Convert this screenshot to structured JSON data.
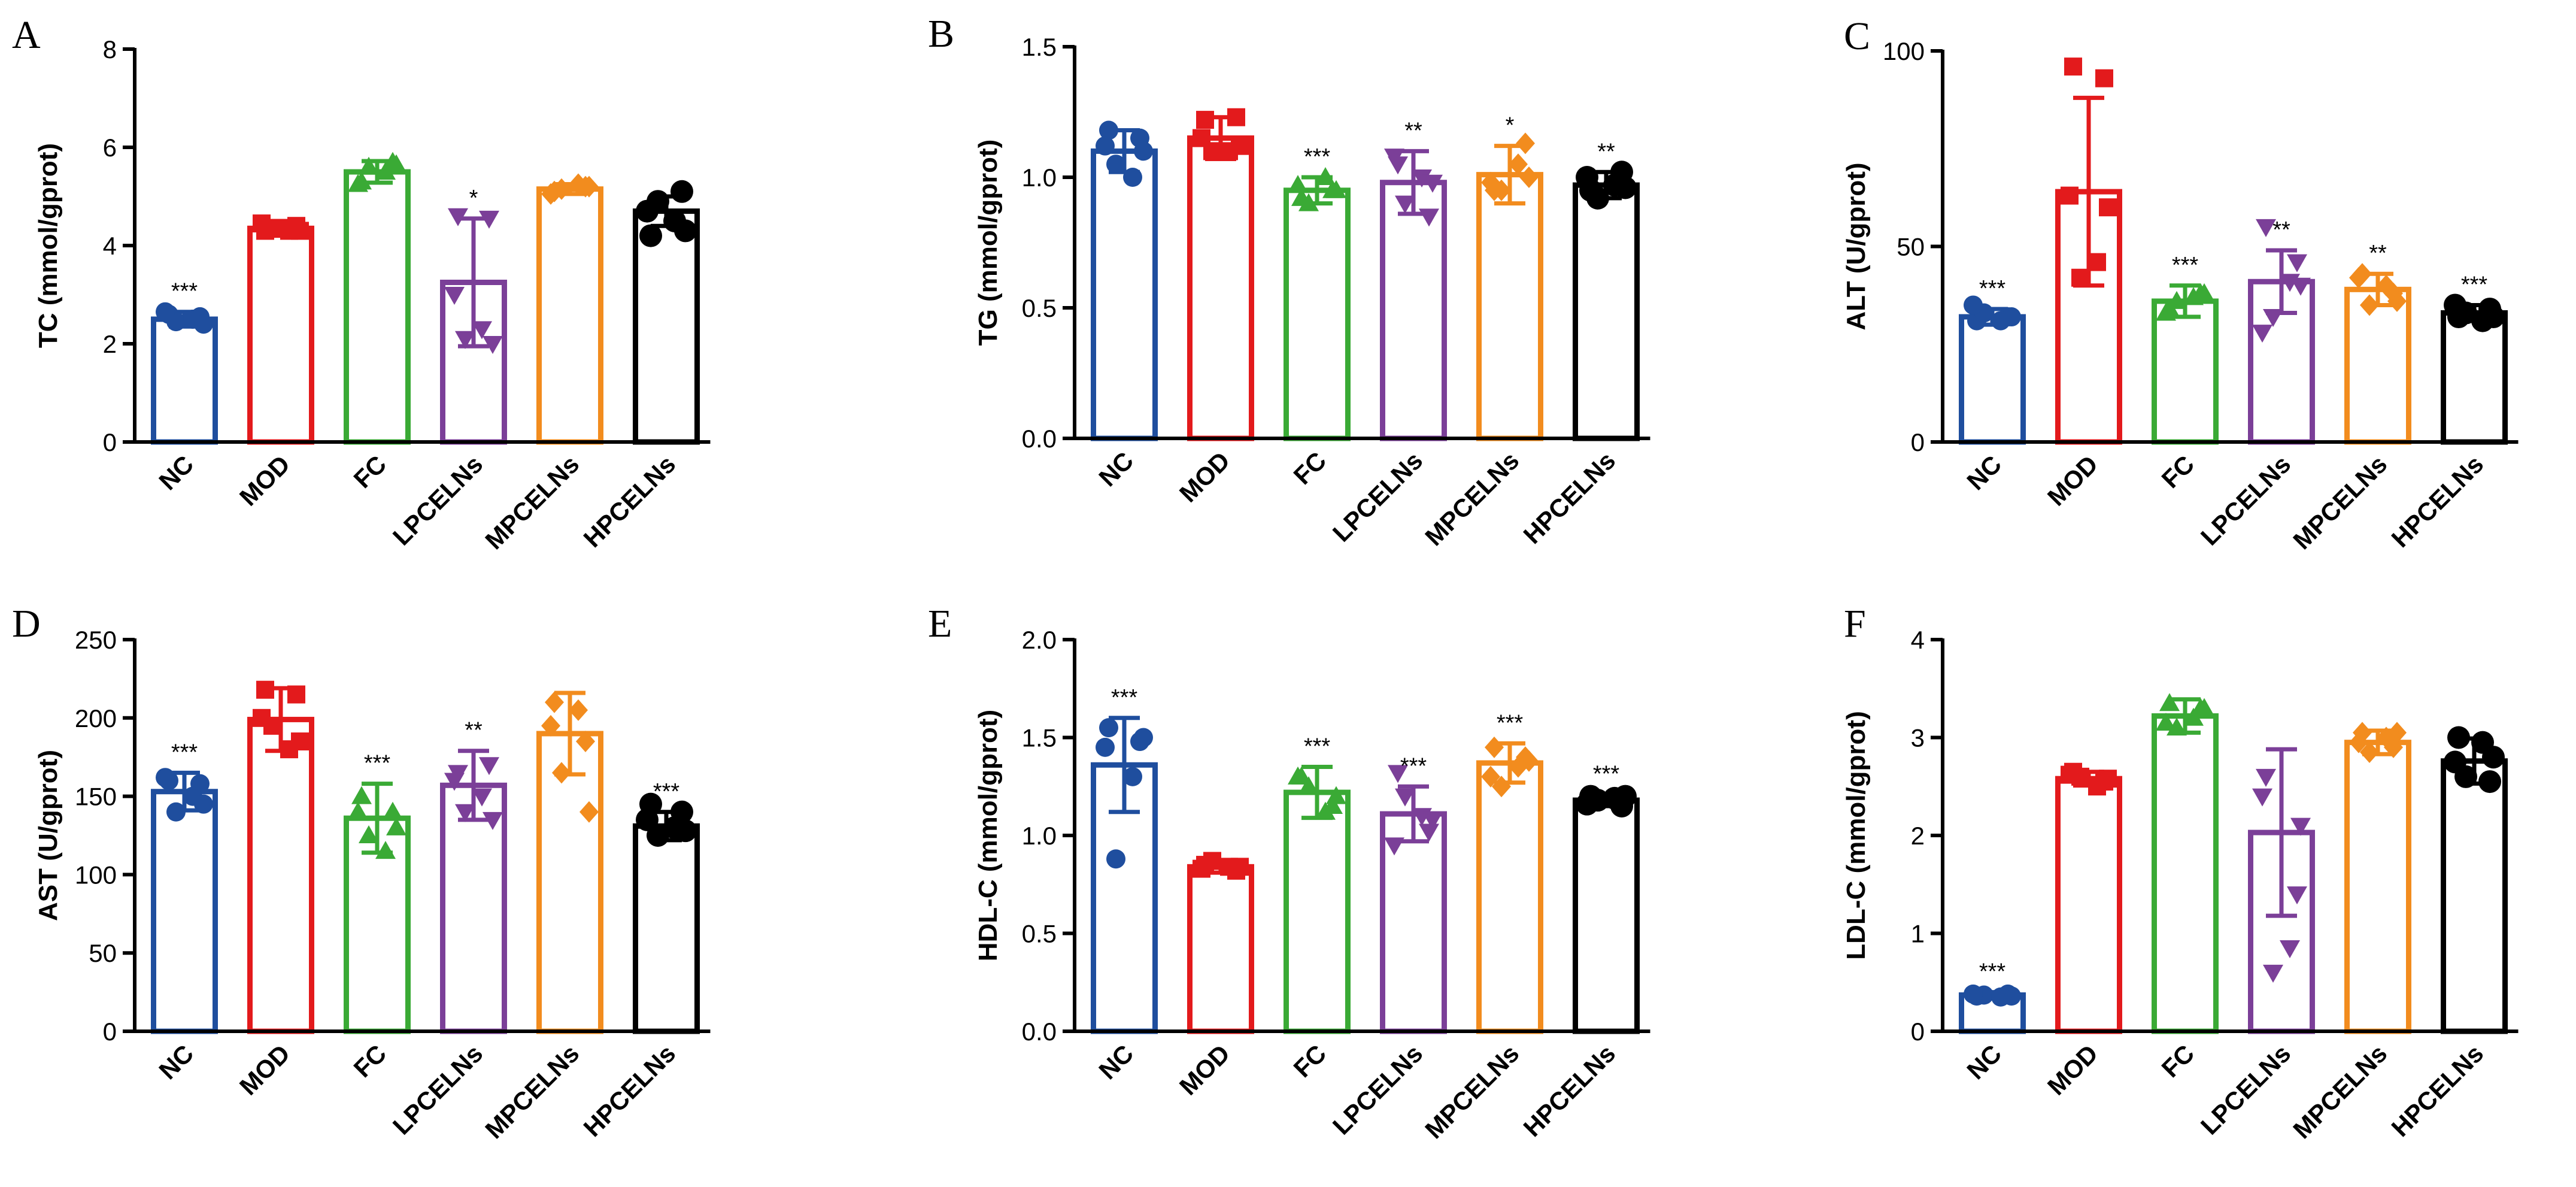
{
  "figure": {
    "groups": [
      "NC",
      "MOD",
      "FC",
      "LPCELNs",
      "MPCELNs",
      "HPCELNs"
    ],
    "colors": [
      "#1f4e9e",
      "#e31a1c",
      "#3aaa35",
      "#7b3f98",
      "#f28c1e",
      "#000000"
    ]
  },
  "chart_data": [
    {
      "panel": "A",
      "type": "bar",
      "ylabel": "TC (mmol/gprot)",
      "ylim": [
        0,
        8
      ],
      "yticks": [
        "0",
        "2",
        "4",
        "6",
        "8"
      ],
      "yticks_values": [
        0,
        2,
        4,
        6,
        8
      ],
      "categories": [
        "NC",
        "MOD",
        "FC",
        "LPCELNs",
        "MPCELNs",
        "HPCELNs"
      ],
      "values": [
        2.5,
        4.35,
        5.5,
        3.25,
        5.15,
        4.7
      ],
      "sd": [
        0.15,
        0.15,
        0.22,
        1.3,
        0.1,
        0.3
      ],
      "points": [
        [
          2.6,
          2.55,
          2.45,
          2.5,
          2.65,
          2.4
        ],
        [
          4.3,
          4.4,
          4.35,
          4.3,
          4.45,
          4.3
        ],
        [
          5.3,
          5.7,
          5.6,
          5.5,
          5.25,
          5.65
        ],
        [
          4.6,
          4.55,
          2.1,
          2.3,
          3.0,
          2.0
        ],
        [
          5.1,
          5.2,
          5.15,
          5.25,
          5.05,
          5.2
        ],
        [
          4.2,
          5.1,
          4.9,
          4.5,
          4.7,
          4.3
        ]
      ],
      "significance": [
        "***",
        "",
        "",
        "*",
        "",
        ""
      ]
    },
    {
      "panel": "B",
      "type": "bar",
      "ylabel": "TG (mmol/gprot)",
      "ylim": [
        0,
        1.5
      ],
      "yticks": [
        "0.0",
        "0.5",
        "1.0",
        "1.5"
      ],
      "yticks_values": [
        0,
        0.5,
        1.0,
        1.5
      ],
      "categories": [
        "NC",
        "MOD",
        "FC",
        "LPCELNs",
        "MPCELNs",
        "HPCELNs"
      ],
      "values": [
        1.1,
        1.15,
        0.95,
        0.98,
        1.01,
        0.97
      ],
      "sd": [
        0.08,
        0.08,
        0.05,
        0.12,
        0.11,
        0.05
      ],
      "points": [
        [
          1.18,
          1.15,
          1.05,
          1.0,
          1.12,
          1.1
        ],
        [
          1.22,
          1.23,
          1.1,
          1.1,
          1.15,
          1.12
        ],
        [
          0.92,
          0.95,
          0.9,
          1.0,
          0.97,
          0.95
        ],
        [
          1.05,
          0.85,
          0.9,
          1.0,
          1.08,
          0.98
        ],
        [
          0.95,
          1.13,
          0.95,
          1.05,
          0.98,
          1.0
        ],
        [
          0.95,
          1.02,
          0.92,
          0.97,
          1.0,
          0.96
        ]
      ],
      "significance": [
        "",
        "",
        "***",
        "**",
        "*",
        "**"
      ]
    },
    {
      "panel": "C",
      "type": "bar",
      "ylabel": "ALT (U/gprot)",
      "ylim": [
        0,
        100
      ],
      "yticks": [
        "0",
        "50",
        "100"
      ],
      "yticks_values": [
        0,
        50,
        100
      ],
      "categories": [
        "NC",
        "MOD",
        "FC",
        "LPCELNs",
        "MPCELNs",
        "HPCELNs"
      ],
      "values": [
        32,
        64,
        36,
        41,
        39,
        33
      ],
      "sd": [
        2,
        24,
        4,
        8,
        4,
        2
      ],
      "points": [
        [
          31,
          32,
          33,
          31,
          35,
          32
        ],
        [
          96,
          93,
          42,
          46,
          63,
          60
        ],
        [
          34,
          38,
          36,
          37,
          33,
          38
        ],
        [
          55,
          46,
          32,
          41,
          28,
          40
        ],
        [
          43,
          38,
          35,
          40,
          42,
          36
        ],
        [
          32,
          34,
          33,
          31,
          35,
          32
        ]
      ],
      "significance": [
        "***",
        "",
        "***",
        "**",
        "**",
        "***"
      ]
    },
    {
      "panel": "D",
      "type": "bar",
      "ylabel": "AST (U/gprot)",
      "ylim": [
        0,
        250
      ],
      "yticks": [
        "0",
        "50",
        "100",
        "150",
        "200",
        "250"
      ],
      "yticks_values": [
        0,
        50,
        100,
        150,
        200,
        250
      ],
      "categories": [
        "NC",
        "MOD",
        "FC",
        "LPCELNs",
        "MPCELNs",
        "HPCELNs"
      ],
      "values": [
        153,
        199,
        136,
        157,
        190,
        131
      ],
      "sd": [
        12,
        20,
        22,
        22,
        26,
        9
      ],
      "points": [
        [
          160,
          158,
          140,
          150,
          162,
          145
        ],
        [
          218,
          215,
          195,
          180,
          200,
          185
        ],
        [
          150,
          140,
          125,
          115,
          140,
          130
        ],
        [
          165,
          170,
          140,
          150,
          160,
          135
        ],
        [
          210,
          185,
          165,
          205,
          195,
          140
        ],
        [
          145,
          140,
          125,
          130,
          135,
          128
        ]
      ],
      "significance": [
        "***",
        "",
        "***",
        "**",
        "",
        "***"
      ]
    },
    {
      "panel": "E",
      "type": "bar",
      "ylabel": "HDL-C (mmol/gprot)",
      "ylim": [
        0,
        2.0
      ],
      "yticks": [
        "0.0",
        "0.5",
        "1.0",
        "1.5",
        "2.0"
      ],
      "yticks_values": [
        0,
        0.5,
        1.0,
        1.5,
        2.0
      ],
      "categories": [
        "NC",
        "MOD",
        "FC",
        "LPCELNs",
        "MPCELNs",
        "HPCELNs"
      ],
      "values": [
        1.36,
        0.84,
        1.22,
        1.11,
        1.37,
        1.18
      ],
      "sd": [
        0.24,
        0.03,
        0.13,
        0.14,
        0.1,
        0.03
      ],
      "points": [
        [
          1.55,
          1.48,
          0.88,
          1.3,
          1.45,
          1.5
        ],
        [
          0.85,
          0.82,
          0.87,
          0.84,
          0.83,
          0.84
        ],
        [
          1.3,
          1.15,
          1.25,
          1.12,
          1.3,
          1.2
        ],
        [
          1.32,
          1.02,
          1.2,
          1.1,
          0.95,
          1.08
        ],
        [
          1.45,
          1.4,
          1.25,
          1.35,
          1.3,
          1.38
        ],
        [
          1.2,
          1.15,
          1.18,
          1.19,
          1.16,
          1.2
        ]
      ],
      "significance": [
        "***",
        "",
        "***",
        "***",
        "***",
        "***"
      ]
    },
    {
      "panel": "F",
      "type": "bar",
      "ylabel": "LDL-C (mmol/gprot)",
      "ylim": [
        0,
        4
      ],
      "yticks": [
        "0",
        "1",
        "2",
        "3",
        "4"
      ],
      "yticks_values": [
        0,
        1,
        2,
        3,
        4
      ],
      "categories": [
        "NC",
        "MOD",
        "FC",
        "LPCELNs",
        "MPCELNs",
        "HPCELNs"
      ],
      "values": [
        0.37,
        2.58,
        3.22,
        2.03,
        2.95,
        2.76
      ],
      "sd": [
        0.03,
        0.07,
        0.17,
        0.85,
        0.12,
        0.23
      ],
      "points": [
        [
          0.36,
          0.38,
          0.37,
          0.35,
          0.38,
          0.36
        ],
        [
          2.65,
          2.55,
          2.6,
          2.5,
          2.62,
          2.58
        ],
        [
          3.35,
          3.3,
          3.1,
          3.2,
          3.15,
          3.3
        ],
        [
          2.6,
          1.4,
          0.6,
          0.85,
          2.4,
          2.1
        ],
        [
          3.05,
          2.9,
          2.85,
          3.0,
          2.95,
          3.05
        ],
        [
          3.0,
          2.55,
          2.6,
          2.95,
          2.75,
          2.8
        ]
      ],
      "significance": [
        "***",
        "",
        "",
        "",
        "",
        ""
      ]
    }
  ]
}
